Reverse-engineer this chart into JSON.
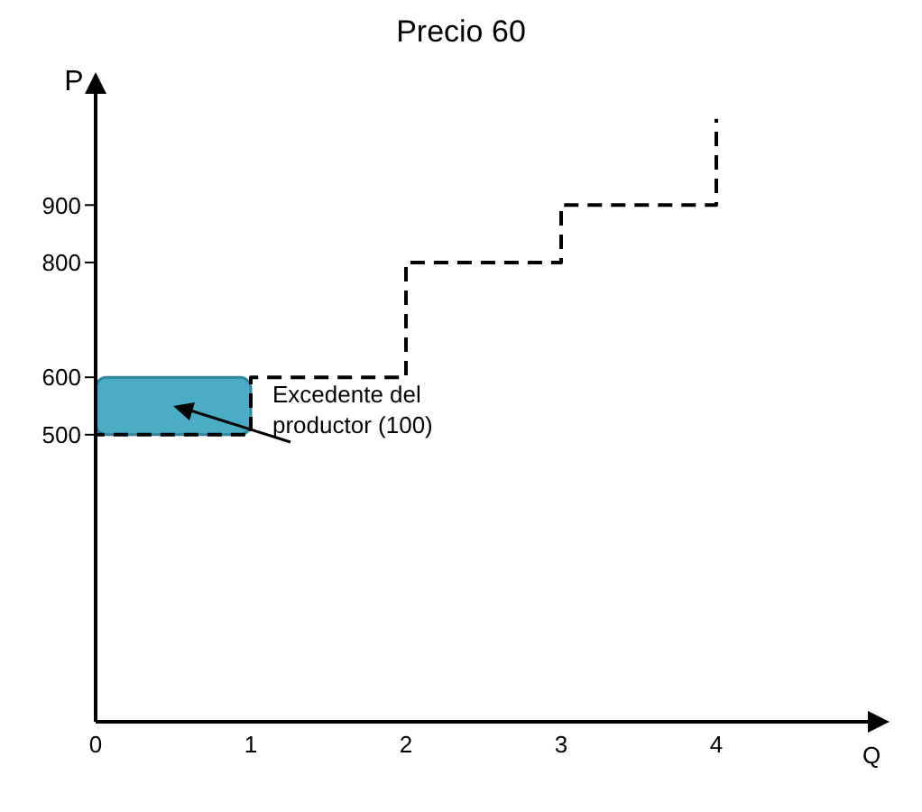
{
  "chart_data": {
    "type": "line",
    "title": "Precio 60",
    "xlabel": "Q",
    "ylabel": "P",
    "series": [
      {
        "color": "#000000",
        "x": [
          0,
          0,
          1,
          1,
          2,
          2,
          3,
          3,
          4,
          4
        ],
        "values": [
          0,
          500,
          500,
          600,
          600,
          800,
          800,
          900,
          900,
          1050
        ]
      }
    ],
    "xlim": [
      0,
      5
    ],
    "xticks": [
      0,
      1,
      2,
      3,
      4
    ],
    "ylim": [
      0,
      1100
    ],
    "yticks": [
      500,
      600,
      800,
      900
    ],
    "line_style": "dashed",
    "marker": "none",
    "annotations": [
      "Excedente del productor (100)"
    ]
  }
}
